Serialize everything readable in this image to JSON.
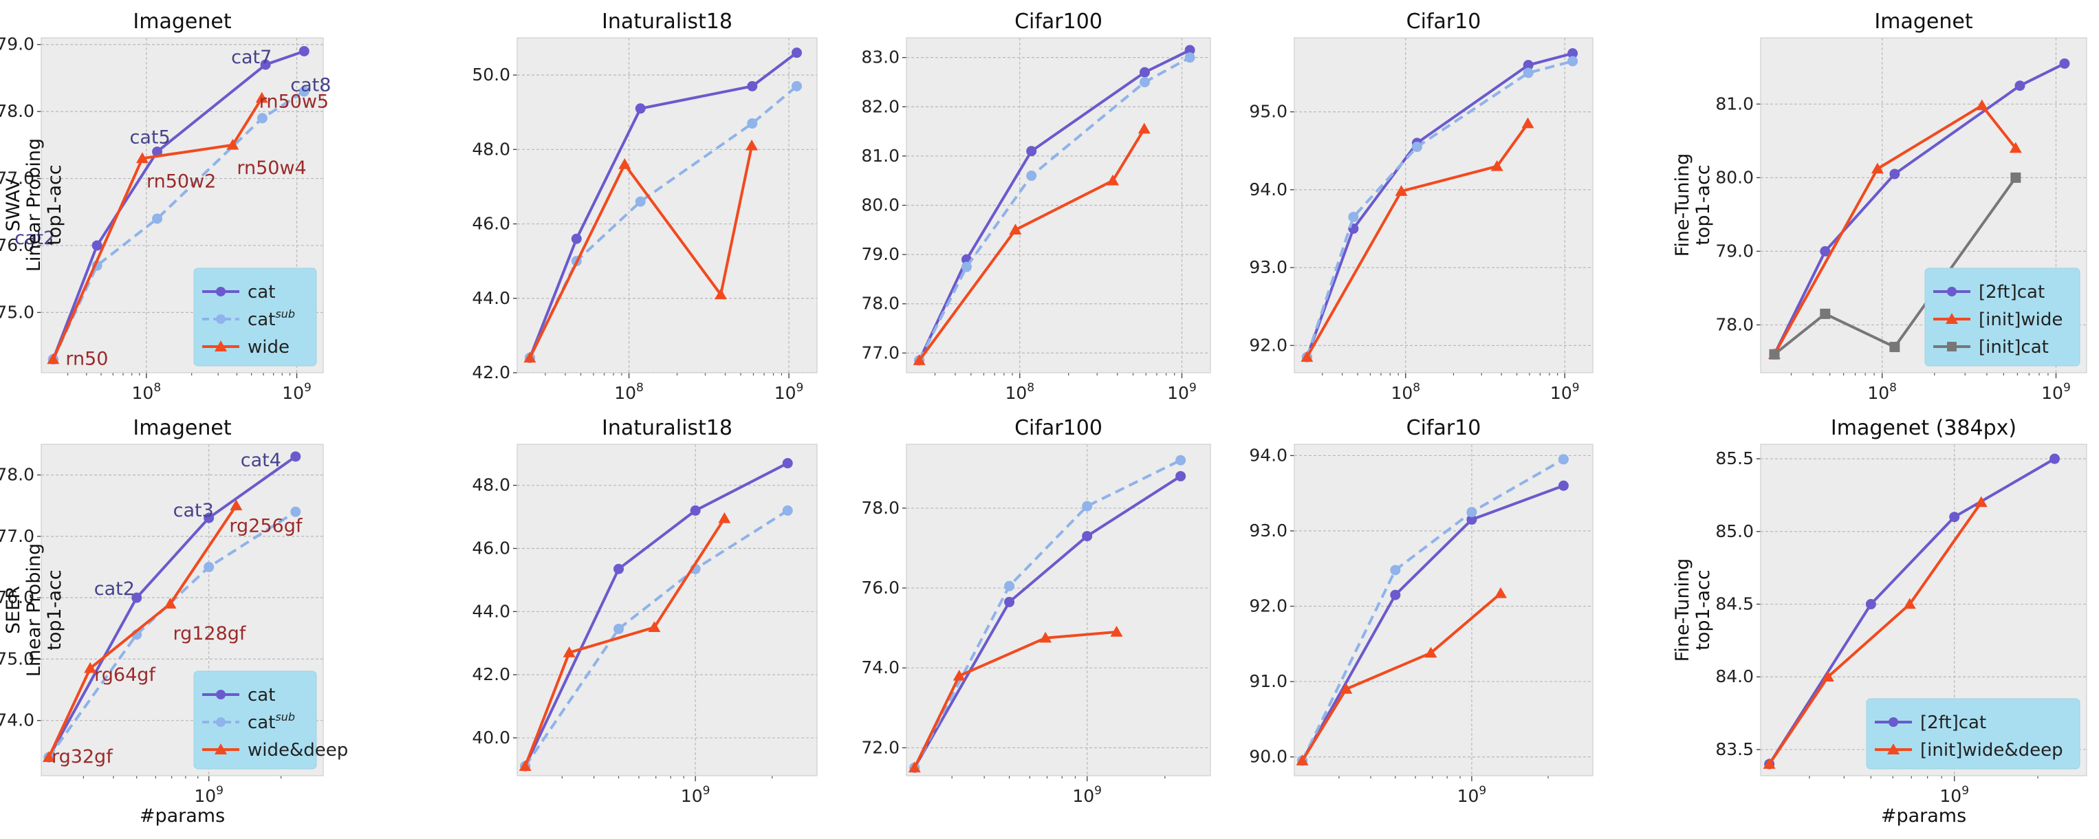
{
  "figure": {
    "row_labels": [
      [
        "SWAV",
        "Linear Probing",
        "top1-acc"
      ],
      [
        "SEER",
        "Linear Probing",
        "top1-acc"
      ]
    ],
    "ft_labels": [
      "Fine-Tuning",
      "top1-acc"
    ],
    "xlabel": "#params"
  },
  "styles": {
    "cat": {
      "color": "#6a5acd",
      "marker": "circle",
      "dash": false
    },
    "cat_sub": {
      "color": "#8fb3ea",
      "marker": "circle",
      "dash": true
    },
    "wide": {
      "color": "#f24a1e",
      "marker": "triangle",
      "dash": false
    },
    "initcat": {
      "color": "#777777",
      "marker": "square",
      "dash": false
    },
    "plot_bg": "#ececec",
    "legend_bg": "#a9def0",
    "annot_cat": "#46428a",
    "annot_wide": "#9b2a2a"
  },
  "chart_data": [
    {
      "type": "line",
      "title": "Imagenet",
      "xscale": "log",
      "xlim": [
        20000000,
        1500000000
      ],
      "ylim": [
        74.1,
        79.1
      ],
      "yticks": [
        "75.0",
        "76.0",
        "77.0",
        "78.0",
        "79.0"
      ],
      "xticks": [
        {
          "v": 100000000,
          "base": "10",
          "exp": "8"
        },
        {
          "v": 1000000000,
          "base": "10",
          "exp": "9"
        }
      ],
      "legend": {
        "placement": "bottom-right"
      },
      "series": [
        {
          "name": "cat",
          "style": "cat",
          "x": [
            24000000,
            47000000,
            118000000,
            620000000,
            1120000000
          ],
          "y": [
            74.3,
            76.0,
            77.4,
            78.7,
            78.9
          ]
        },
        {
          "name": "cat",
          "sup": "sub",
          "style": "cat_sub",
          "x": [
            24000000,
            47000000,
            118000000,
            590000000,
            1120000000
          ],
          "y": [
            74.3,
            75.7,
            76.4,
            77.9,
            78.3
          ]
        },
        {
          "name": "wide",
          "style": "wide",
          "x": [
            24000000,
            94000000,
            375000000,
            586000000
          ],
          "y": [
            74.3,
            77.3,
            77.5,
            78.2
          ]
        }
      ],
      "annotations": [
        {
          "text": "cat2",
          "x": 47000000,
          "y": 76.0,
          "style": "annot_cat",
          "dx": -120,
          "dy": -10
        },
        {
          "text": "cat5",
          "x": 118000000,
          "y": 77.4,
          "style": "annot_cat",
          "dx": -40,
          "dy": -20
        },
        {
          "text": "cat7",
          "x": 620000000,
          "y": 78.7,
          "style": "annot_cat",
          "dx": -50,
          "dy": -10
        },
        {
          "text": "cat8",
          "x": 1120000000,
          "y": 78.9,
          "style": "annot_cat",
          "dx": -20,
          "dy": 50
        },
        {
          "text": "rn50",
          "x": 24000000,
          "y": 74.3,
          "style": "annot_wide",
          "dx": 18,
          "dy": 0
        },
        {
          "text": "rn50w2",
          "x": 94000000,
          "y": 77.3,
          "style": "annot_wide",
          "dx": 6,
          "dy": 34
        },
        {
          "text": "rn50w4",
          "x": 375000000,
          "y": 77.5,
          "style": "annot_wide",
          "dx": 6,
          "dy": 34
        },
        {
          "text": "rn50w5",
          "x": 586000000,
          "y": 78.2,
          "style": "annot_wide",
          "dx": -4,
          "dy": 6
        }
      ]
    },
    {
      "type": "line",
      "title": "Inaturalist18",
      "xscale": "log",
      "xlim": [
        20000000,
        1500000000
      ],
      "ylim": [
        42.0,
        51.0
      ],
      "yticks": [
        "42.0",
        "44.0",
        "46.0",
        "48.0",
        "50.0"
      ],
      "xticks": [
        {
          "v": 100000000,
          "base": "10",
          "exp": "8"
        },
        {
          "v": 1000000000,
          "base": "10",
          "exp": "9"
        }
      ],
      "series": [
        {
          "name": "cat",
          "style": "cat",
          "x": [
            24000000,
            47000000,
            118000000,
            590000000,
            1120000000
          ],
          "y": [
            42.4,
            45.6,
            49.1,
            49.7,
            50.6
          ]
        },
        {
          "name": "cat_sub",
          "style": "cat_sub",
          "x": [
            24000000,
            47000000,
            118000000,
            590000000,
            1120000000
          ],
          "y": [
            42.4,
            45.0,
            46.6,
            48.7,
            49.7
          ]
        },
        {
          "name": "wide",
          "style": "wide",
          "x": [
            24000000,
            94000000,
            375000000,
            586000000
          ],
          "y": [
            42.4,
            47.6,
            44.1,
            48.1
          ]
        }
      ]
    },
    {
      "type": "line",
      "title": "Cifar100",
      "xscale": "log",
      "xlim": [
        20000000,
        1500000000
      ],
      "ylim": [
        76.6,
        83.4
      ],
      "yticks": [
        "77.0",
        "78.0",
        "79.0",
        "80.0",
        "81.0",
        "82.0",
        "83.0"
      ],
      "xticks": [
        {
          "v": 100000000,
          "base": "10",
          "exp": "8"
        },
        {
          "v": 1000000000,
          "base": "10",
          "exp": "9"
        }
      ],
      "series": [
        {
          "name": "cat",
          "style": "cat",
          "x": [
            24000000,
            47000000,
            118000000,
            590000000,
            1120000000
          ],
          "y": [
            76.85,
            78.9,
            81.1,
            82.7,
            83.15
          ]
        },
        {
          "name": "cat_sub",
          "style": "cat_sub",
          "x": [
            24000000,
            47000000,
            118000000,
            590000000,
            1120000000
          ],
          "y": [
            76.85,
            78.75,
            80.6,
            82.5,
            83.0
          ]
        },
        {
          "name": "wide",
          "style": "wide",
          "x": [
            24000000,
            94000000,
            375000000,
            586000000
          ],
          "y": [
            76.85,
            79.5,
            80.5,
            81.55
          ]
        }
      ]
    },
    {
      "type": "line",
      "title": "Cifar10",
      "xscale": "log",
      "xlim": [
        20000000,
        1500000000
      ],
      "ylim": [
        91.65,
        95.95
      ],
      "yticks": [
        "92.0",
        "93.0",
        "94.0",
        "95.0"
      ],
      "xticks": [
        {
          "v": 100000000,
          "base": "10",
          "exp": "8"
        },
        {
          "v": 1000000000,
          "base": "10",
          "exp": "9"
        }
      ],
      "series": [
        {
          "name": "cat",
          "style": "cat",
          "x": [
            24000000,
            47000000,
            118000000,
            590000000,
            1120000000
          ],
          "y": [
            91.85,
            93.5,
            94.6,
            95.6,
            95.75
          ]
        },
        {
          "name": "cat_sub",
          "style": "cat_sub",
          "x": [
            24000000,
            47000000,
            118000000,
            590000000,
            1120000000
          ],
          "y": [
            91.85,
            93.65,
            94.55,
            95.5,
            95.65
          ]
        },
        {
          "name": "wide",
          "style": "wide",
          "x": [
            24000000,
            94000000,
            375000000,
            586000000
          ],
          "y": [
            91.85,
            93.98,
            94.3,
            94.85
          ]
        }
      ]
    },
    {
      "type": "line",
      "title": "Imagenet",
      "xscale": "log",
      "xlim": [
        20000000,
        1500000000
      ],
      "ylim": [
        77.35,
        81.9
      ],
      "yticks": [
        "78.0",
        "79.0",
        "80.0",
        "81.0"
      ],
      "xticks": [
        {
          "v": 100000000,
          "base": "10",
          "exp": "8"
        },
        {
          "v": 1000000000,
          "base": "10",
          "exp": "9"
        }
      ],
      "legend": {
        "placement": "bottom-right"
      },
      "series": [
        {
          "name": "[2ft]cat",
          "style": "cat",
          "x": [
            24000000,
            47000000,
            118000000,
            620000000,
            1120000000
          ],
          "y": [
            77.6,
            79.0,
            80.05,
            81.25,
            81.55
          ]
        },
        {
          "name": "[init]wide",
          "style": "wide",
          "x": [
            24000000,
            94000000,
            375000000,
            586000000
          ],
          "y": [
            77.6,
            80.12,
            80.98,
            80.4
          ]
        },
        {
          "name": "[init]cat",
          "style": "initcat",
          "x": [
            24000000,
            47000000,
            118000000,
            586000000
          ],
          "y": [
            77.6,
            78.15,
            77.7,
            80.0
          ]
        }
      ]
    },
    {
      "type": "line",
      "title": "Imagenet",
      "xscale": "log",
      "xlim": [
        200000000,
        3000000000
      ],
      "ylim": [
        73.1,
        78.5
      ],
      "yticks": [
        "74.0",
        "75.0",
        "76.0",
        "77.0",
        "78.0"
      ],
      "xticks": [
        {
          "v": 1000000000,
          "base": "10",
          "exp": "9"
        }
      ],
      "legend": {
        "placement": "bottom-right"
      },
      "series": [
        {
          "name": "cat",
          "style": "cat",
          "x": [
            215000000,
            500000000,
            1000000000,
            2300000000
          ],
          "y": [
            73.4,
            76.0,
            77.3,
            78.3
          ]
        },
        {
          "name": "cat",
          "sup": "sub",
          "style": "cat_sub",
          "x": [
            215000000,
            500000000,
            1000000000,
            2300000000
          ],
          "y": [
            73.4,
            75.4,
            76.5,
            77.4
          ]
        },
        {
          "name": "wide&deep",
          "style": "wide",
          "x": [
            215000000,
            320000000,
            690000000,
            1300000000
          ],
          "y": [
            73.4,
            74.85,
            75.9,
            77.5
          ]
        }
      ],
      "annotations": [
        {
          "text": "cat2",
          "x": 500000000,
          "y": 76.0,
          "style": "annot_cat",
          "dx": -62,
          "dy": -12
        },
        {
          "text": "cat3",
          "x": 1000000000,
          "y": 77.3,
          "style": "annot_cat",
          "dx": -52,
          "dy": -10
        },
        {
          "text": "cat4",
          "x": 2300000000,
          "y": 78.3,
          "style": "annot_cat",
          "dx": -80,
          "dy": 6
        },
        {
          "text": "rg32gf",
          "x": 215000000,
          "y": 73.4,
          "style": "annot_wide",
          "dx": 4,
          "dy": 0
        },
        {
          "text": "rg64gf",
          "x": 320000000,
          "y": 74.85,
          "style": "annot_wide",
          "dx": 6,
          "dy": 10
        },
        {
          "text": "rg128gf",
          "x": 690000000,
          "y": 75.9,
          "style": "annot_wide",
          "dx": 4,
          "dy": 44
        },
        {
          "text": "rg256gf",
          "x": 1300000000,
          "y": 77.5,
          "style": "annot_wide",
          "dx": -10,
          "dy": 30
        }
      ]
    },
    {
      "type": "line",
      "title": "Inaturalist18",
      "xscale": "log",
      "xlim": [
        200000000,
        3000000000
      ],
      "ylim": [
        38.8,
        49.3
      ],
      "yticks": [
        "40.0",
        "42.0",
        "44.0",
        "46.0",
        "48.0"
      ],
      "xticks": [
        {
          "v": 1000000000,
          "base": "10",
          "exp": "9"
        }
      ],
      "series": [
        {
          "name": "cat",
          "style": "cat",
          "x": [
            215000000,
            500000000,
            1000000000,
            2300000000
          ],
          "y": [
            39.1,
            45.35,
            47.2,
            48.7
          ]
        },
        {
          "name": "cat_sub",
          "style": "cat_sub",
          "x": [
            215000000,
            500000000,
            1000000000,
            2300000000
          ],
          "y": [
            39.1,
            43.45,
            45.35,
            47.2
          ]
        },
        {
          "name": "wide&deep",
          "style": "wide",
          "x": [
            215000000,
            320000000,
            690000000,
            1300000000
          ],
          "y": [
            39.1,
            42.7,
            43.5,
            46.95
          ]
        }
      ]
    },
    {
      "type": "line",
      "title": "Cifar100",
      "xscale": "log",
      "xlim": [
        200000000,
        3000000000
      ],
      "ylim": [
        71.3,
        79.6
      ],
      "yticks": [
        "72.0",
        "74.0",
        "76.0",
        "78.0"
      ],
      "xticks": [
        {
          "v": 1000000000,
          "base": "10",
          "exp": "9"
        }
      ],
      "series": [
        {
          "name": "cat",
          "style": "cat",
          "x": [
            215000000,
            500000000,
            1000000000,
            2300000000
          ],
          "y": [
            71.5,
            75.65,
            77.3,
            78.8
          ]
        },
        {
          "name": "cat_sub",
          "style": "cat_sub",
          "x": [
            215000000,
            500000000,
            1000000000,
            2300000000
          ],
          "y": [
            71.5,
            76.05,
            78.05,
            79.2
          ]
        },
        {
          "name": "wide&deep",
          "style": "wide",
          "x": [
            215000000,
            320000000,
            690000000,
            1300000000
          ],
          "y": [
            71.5,
            73.8,
            74.75,
            74.9
          ]
        }
      ]
    },
    {
      "type": "line",
      "title": "Cifar10",
      "xscale": "log",
      "xlim": [
        200000000,
        3000000000
      ],
      "ylim": [
        89.75,
        94.15
      ],
      "yticks": [
        "90.0",
        "91.0",
        "92.0",
        "93.0",
        "94.0"
      ],
      "xticks": [
        {
          "v": 1000000000,
          "base": "10",
          "exp": "9"
        }
      ],
      "series": [
        {
          "name": "cat",
          "style": "cat",
          "x": [
            215000000,
            500000000,
            1000000000,
            2300000000
          ],
          "y": [
            89.95,
            92.15,
            93.15,
            93.6
          ]
        },
        {
          "name": "cat_sub",
          "style": "cat_sub",
          "x": [
            215000000,
            500000000,
            1000000000,
            2300000000
          ],
          "y": [
            89.95,
            92.48,
            93.25,
            93.95
          ]
        },
        {
          "name": "wide&deep",
          "style": "wide",
          "x": [
            215000000,
            320000000,
            690000000,
            1300000000
          ],
          "y": [
            89.95,
            90.9,
            91.38,
            92.17
          ]
        }
      ]
    },
    {
      "type": "line",
      "title": "Imagenet (384px)",
      "xscale": "log",
      "xlim": [
        200000000,
        3000000000
      ],
      "ylim": [
        83.32,
        85.6
      ],
      "yticks": [
        "83.5",
        "84.0",
        "84.5",
        "85.0",
        "85.5"
      ],
      "xticks": [
        {
          "v": 1000000000,
          "base": "10",
          "exp": "9"
        }
      ],
      "legend": {
        "placement": "bottom-right"
      },
      "series": [
        {
          "name": "[2ft]cat",
          "style": "cat",
          "x": [
            215000000,
            500000000,
            1000000000,
            2300000000
          ],
          "y": [
            83.4,
            84.5,
            85.1,
            85.5
          ]
        },
        {
          "name": "[init]wide&deep",
          "style": "wide",
          "x": [
            215000000,
            350000000,
            690000000,
            1250000000
          ],
          "y": [
            83.4,
            84.0,
            84.5,
            85.2
          ]
        }
      ]
    }
  ]
}
